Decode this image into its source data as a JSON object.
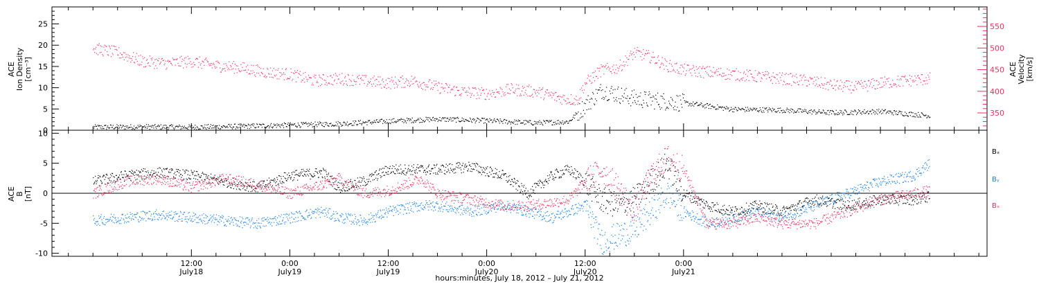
{
  "chart_data": [
    {
      "type": "scatter",
      "panel": "top",
      "y_left_label": [
        "ACE",
        "Ion Density",
        "[cm⁻³]"
      ],
      "y_right_label": [
        "ACE",
        "Velocity",
        "[km/s]"
      ],
      "ylim_left": [
        0,
        29
      ],
      "ylim_right": [
        310,
        595
      ],
      "yticks_left": [
        0,
        5,
        10,
        15,
        20,
        25
      ],
      "yticks_right": [
        350,
        400,
        450,
        500,
        550
      ],
      "series": [
        {
          "axis": "left",
          "color": "#000000",
          "points": [
            [
              0,
              0.8
            ],
            [
              6,
              0.9
            ],
            [
              12,
              0.8
            ],
            [
              18,
              1.0
            ],
            [
              24,
              1.3
            ],
            [
              30,
              1.6
            ],
            [
              36,
              2.2
            ],
            [
              42,
              2.7
            ],
            [
              48,
              2.3
            ],
            [
              54,
              1.8
            ],
            [
              58,
              2.1
            ],
            [
              60,
              6.0
            ],
            [
              62,
              9.5
            ],
            [
              66,
              7.5
            ],
            [
              72,
              6.5
            ],
            [
              78,
              5.0
            ],
            [
              84,
              4.8
            ],
            [
              90,
              4.2
            ],
            [
              96,
              4.5
            ],
            [
              102,
              3.5
            ]
          ]
        },
        {
          "axis": "right",
          "color": "#e8305e",
          "points": [
            [
              0,
              500
            ],
            [
              3,
              490
            ],
            [
              6,
              470
            ],
            [
              9,
              465
            ],
            [
              12,
              470
            ],
            [
              15,
              460
            ],
            [
              18,
              455
            ],
            [
              21,
              445
            ],
            [
              24,
              440
            ],
            [
              27,
              425
            ],
            [
              30,
              430
            ],
            [
              33,
              425
            ],
            [
              36,
              420
            ],
            [
              39,
              425
            ],
            [
              42,
              410
            ],
            [
              45,
              400
            ],
            [
              48,
              395
            ],
            [
              51,
              405
            ],
            [
              54,
              400
            ],
            [
              57,
              385
            ],
            [
              59,
              380
            ],
            [
              60,
              420
            ],
            [
              62,
              450
            ],
            [
              64,
              455
            ],
            [
              66,
              490
            ],
            [
              68,
              480
            ],
            [
              70,
              460
            ],
            [
              72,
              450
            ],
            [
              75,
              445
            ],
            [
              78,
              440
            ],
            [
              81,
              435
            ],
            [
              84,
              430
            ],
            [
              87,
              425
            ],
            [
              90,
              415
            ],
            [
              93,
              410
            ],
            [
              96,
              420
            ],
            [
              99,
              425
            ],
            [
              102,
              430
            ]
          ]
        }
      ]
    },
    {
      "type": "scatter",
      "panel": "bottom",
      "y_left_label": [
        "ACE",
        "B",
        "[nT]"
      ],
      "ylim": [
        -10.5,
        10.5
      ],
      "yticks": [
        -10,
        -5,
        0,
        5,
        10
      ],
      "legend": [
        "Bₓ",
        "Bᵧ",
        "Bₓ"
      ],
      "series": [
        {
          "name": "Bx",
          "color": "#000000",
          "points": [
            [
              0,
              2
            ],
            [
              4,
              3
            ],
            [
              8,
              3.5
            ],
            [
              12,
              3
            ],
            [
              16,
              2
            ],
            [
              20,
              1
            ],
            [
              24,
              3
            ],
            [
              28,
              3.5
            ],
            [
              30,
              1
            ],
            [
              33,
              2
            ],
            [
              36,
              4
            ],
            [
              40,
              4
            ],
            [
              42,
              4
            ],
            [
              46,
              4.5
            ],
            [
              50,
              3
            ],
            [
              53,
              0
            ],
            [
              56,
              3
            ],
            [
              58,
              4
            ],
            [
              60,
              2
            ],
            [
              62,
              -1
            ],
            [
              64,
              -2
            ],
            [
              66,
              -1
            ],
            [
              68,
              2
            ],
            [
              70,
              5
            ],
            [
              72,
              0
            ],
            [
              75,
              -2
            ],
            [
              78,
              -3
            ],
            [
              81,
              -2
            ],
            [
              84,
              -3
            ],
            [
              88,
              -1
            ],
            [
              92,
              -2
            ],
            [
              96,
              -1
            ],
            [
              100,
              -1
            ],
            [
              102,
              -0.5
            ]
          ]
        },
        {
          "name": "By",
          "color": "#1a7fe0",
          "points": [
            [
              0,
              -4.5
            ],
            [
              4,
              -4
            ],
            [
              8,
              -3.5
            ],
            [
              12,
              -4
            ],
            [
              16,
              -4.5
            ],
            [
              20,
              -5
            ],
            [
              24,
              -4
            ],
            [
              28,
              -3
            ],
            [
              30,
              -4
            ],
            [
              33,
              -4.5
            ],
            [
              36,
              -3
            ],
            [
              40,
              -2
            ],
            [
              42,
              -2
            ],
            [
              46,
              -3
            ],
            [
              50,
              -2
            ],
            [
              53,
              -3
            ],
            [
              56,
              -4
            ],
            [
              58,
              -3
            ],
            [
              60,
              -2
            ],
            [
              62,
              -8
            ],
            [
              64,
              -7
            ],
            [
              66,
              -6
            ],
            [
              68,
              -3
            ],
            [
              70,
              0
            ],
            [
              72,
              -3
            ],
            [
              75,
              -5
            ],
            [
              78,
              -4
            ],
            [
              81,
              -3
            ],
            [
              84,
              -4
            ],
            [
              88,
              -2
            ],
            [
              92,
              0
            ],
            [
              96,
              2
            ],
            [
              100,
              3
            ],
            [
              102,
              5
            ]
          ]
        },
        {
          "name": "Bz",
          "color": "#e8305e",
          "points": [
            [
              0,
              0
            ],
            [
              4,
              2
            ],
            [
              8,
              2.5
            ],
            [
              12,
              1
            ],
            [
              16,
              2.5
            ],
            [
              20,
              1.5
            ],
            [
              24,
              0
            ],
            [
              28,
              1.5
            ],
            [
              30,
              2.5
            ],
            [
              33,
              0
            ],
            [
              36,
              0.5
            ],
            [
              40,
              2.5
            ],
            [
              42,
              0
            ],
            [
              46,
              -1
            ],
            [
              50,
              -2
            ],
            [
              53,
              -2
            ],
            [
              56,
              -1.5
            ],
            [
              58,
              -1
            ],
            [
              60,
              2
            ],
            [
              62,
              4
            ],
            [
              64,
              1
            ],
            [
              66,
              -3
            ],
            [
              68,
              3
            ],
            [
              70,
              6
            ],
            [
              72,
              4
            ],
            [
              75,
              -5
            ],
            [
              78,
              -5
            ],
            [
              81,
              -4
            ],
            [
              84,
              -5
            ],
            [
              88,
              -5
            ],
            [
              92,
              -3
            ],
            [
              96,
              -1
            ],
            [
              100,
              0
            ],
            [
              102,
              0.5
            ]
          ]
        }
      ]
    }
  ],
  "xaxis": {
    "range_hours": [
      -5,
      109
    ],
    "ticks": [
      {
        "hour": 12,
        "time": "12:00",
        "date": "July18"
      },
      {
        "hour": 24,
        "time": "0:00",
        "date": "July19"
      },
      {
        "hour": 36,
        "time": "12:00",
        "date": "July19"
      },
      {
        "hour": 48,
        "time": "0:00",
        "date": "July20"
      },
      {
        "hour": 60,
        "time": "12:00",
        "date": "July20"
      },
      {
        "hour": 72,
        "time": "0:00",
        "date": "July21"
      }
    ],
    "title": "hours:minutes, July 18, 2012 – July 21, 2012"
  }
}
